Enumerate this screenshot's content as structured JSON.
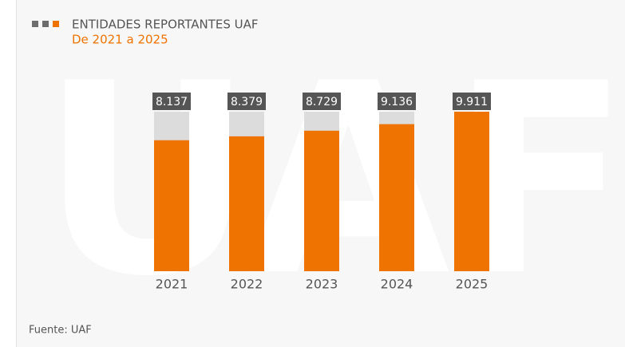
{
  "chart_data": {
    "type": "bar",
    "title": "ENTIDADES REPORTANTES UAF",
    "subtitle": "De 2021 a 2025",
    "watermark": "UAF",
    "source": "Fuente: UAF",
    "categories": [
      "2021",
      "2022",
      "2023",
      "2024",
      "2025"
    ],
    "values": [
      8137,
      8379,
      8729,
      9136,
      9911
    ],
    "value_labels": [
      "8.137",
      "8.379",
      "8.729",
      "9.136",
      "9.911"
    ],
    "color": "#ef7300"
  }
}
